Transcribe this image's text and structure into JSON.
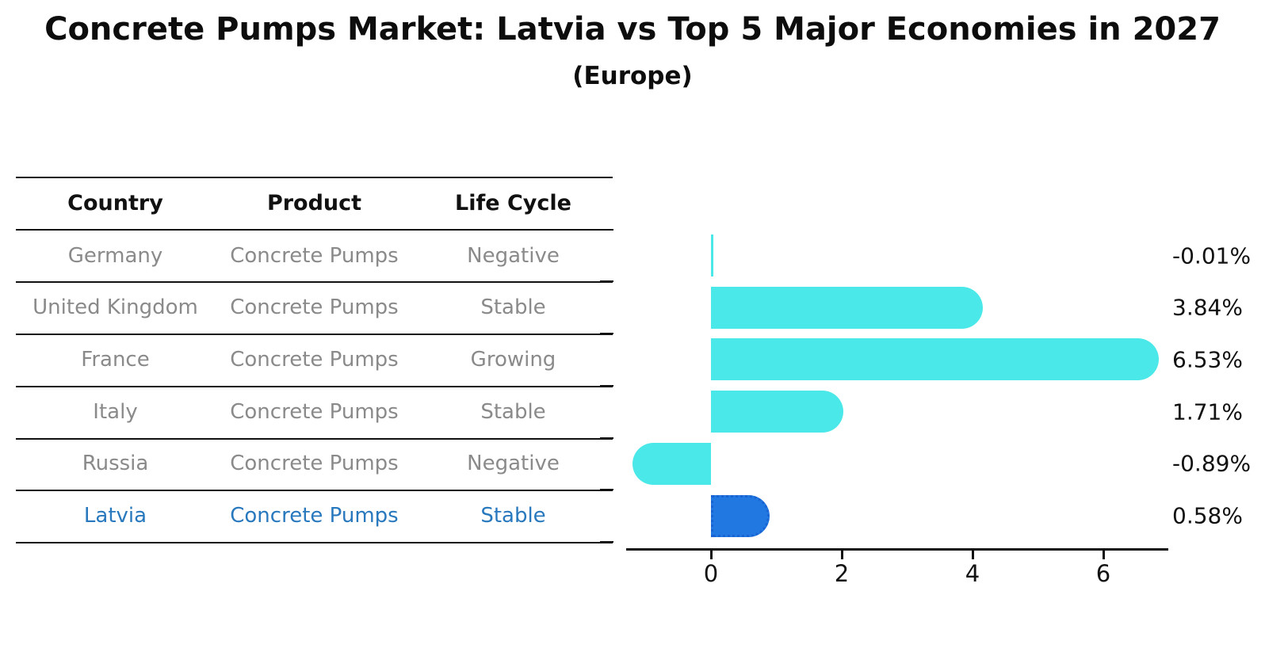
{
  "title": "Concrete Pumps Market: Latvia vs Top 5 Major Economies in 2027",
  "subtitle": "(Europe)",
  "table": {
    "headers": {
      "country": "Country",
      "product": "Product",
      "life_cycle": "Life Cycle"
    },
    "rows": [
      {
        "country": "Germany",
        "product": "Concrete Pumps",
        "life_cycle": "Negative",
        "highlight": false
      },
      {
        "country": "United Kingdom",
        "product": "Concrete Pumps",
        "life_cycle": "Stable",
        "highlight": false
      },
      {
        "country": "France",
        "product": "Concrete Pumps",
        "life_cycle": "Growing",
        "highlight": false
      },
      {
        "country": "Italy",
        "product": "Concrete Pumps",
        "life_cycle": "Stable",
        "highlight": false
      },
      {
        "country": "Russia",
        "product": "Concrete Pumps",
        "life_cycle": "Negative",
        "highlight": false
      },
      {
        "country": "Latvia",
        "product": "Concrete Pumps",
        "life_cycle": "Stable",
        "highlight": true
      }
    ]
  },
  "chart_data": {
    "type": "bar",
    "orientation": "horizontal",
    "title": "Concrete Pumps Market: Latvia vs Top 5 Major Economies in 2027 (Europe)",
    "categories": [
      "Germany",
      "United Kingdom",
      "France",
      "Italy",
      "Russia",
      "Latvia"
    ],
    "values": [
      -0.01,
      3.84,
      6.53,
      1.71,
      -0.89,
      0.58
    ],
    "value_labels": [
      "-0.01%",
      "3.84%",
      "6.53%",
      "1.71%",
      "-0.89%",
      "0.58%"
    ],
    "x_ticks": [
      0,
      2,
      4,
      6
    ],
    "xlim": [
      -1.3,
      6.97
    ],
    "grid": false,
    "legend": false,
    "highlight_category": "Latvia",
    "bar_color": "#4AE8E8",
    "highlight_bar_color": "#2078E0"
  },
  "colors": {
    "title_text": "#0d0d0d",
    "header_text": "#111111",
    "table_text": "#8a8a8a",
    "highlight_text": "#2878BE",
    "axis": "#111111",
    "bar_cyan": "#4AE8E8",
    "bar_blue": "#2078E0"
  }
}
